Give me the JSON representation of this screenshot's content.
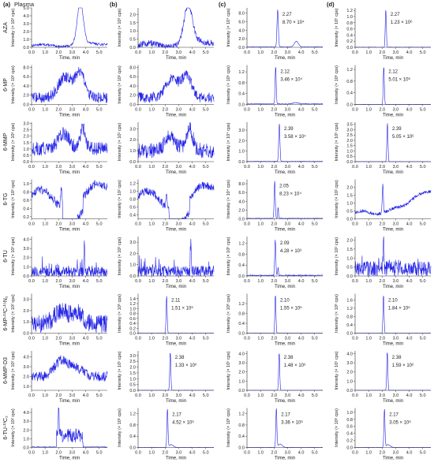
{
  "figure": {
    "trace_color": "#2323e6",
    "axis_color": "#333333",
    "x_tick_labels": [
      "0.0",
      "1.0",
      "2.0",
      "3.0",
      "4.0",
      "5.0"
    ],
    "x_label": "Time, min",
    "columns": [
      {
        "id": "a",
        "label": "(a)",
        "sublabel": "Plasma"
      },
      {
        "id": "b",
        "label": "(b)",
        "sublabel": ""
      },
      {
        "id": "c",
        "label": "(c)",
        "sublabel": ""
      },
      {
        "id": "d",
        "label": "(d)",
        "sublabel": ""
      }
    ],
    "rows": [
      {
        "name": "AZA",
        "name_html": "AZA"
      },
      {
        "name": "6-MP",
        "name_html": "6-MP"
      },
      {
        "name": "6-MMP",
        "name_html": "6-MMP"
      },
      {
        "name": "6-TG",
        "name_html": "6-TG"
      },
      {
        "name": "6-TU",
        "name_html": "6-TU"
      },
      {
        "name": "6-MP-13C-15N2",
        "name_html": "6-MP-¹³C-¹⁵N₂"
      },
      {
        "name": "6-MMP-D3",
        "name_html": "6-MMP-D3"
      },
      {
        "name": "6-TU-13C2",
        "name_html": "6-TU-¹³C₂"
      }
    ]
  },
  "chart_data": [
    {
      "row": 0,
      "col": 0,
      "type": "line",
      "ylabel": "Intensity (× 10³ cps)",
      "yticks": [
        "0.0",
        "1.0",
        "2.0",
        "3.0",
        "4.0",
        "5.0"
      ],
      "ymax": 5.0,
      "x": [
        0,
        5.6
      ],
      "shape": "broad",
      "peaks": [
        {
          "t": 3.6,
          "h": 5.3,
          "w": 0.22
        }
      ],
      "noise": 0.15,
      "base": 0.2,
      "peak_rt": "",
      "peak_intensity": ""
    },
    {
      "row": 0,
      "col": 1,
      "type": "line",
      "ylabel": "Intensity (× 10³ cps)",
      "yticks": [
        "0.0",
        "0.5",
        "1.0",
        "1.5",
        "2.0"
      ],
      "ymax": 2.4,
      "x": [
        0,
        5.6
      ],
      "shape": "broad",
      "peaks": [
        {
          "t": 3.7,
          "h": 2.2,
          "w": 0.3
        }
      ],
      "noise": 0.2,
      "base": 0.1,
      "peak_rt": "",
      "peak_intensity": ""
    },
    {
      "row": 0,
      "col": 2,
      "type": "line",
      "ylabel": "Intensity (× 10⁴ cps)",
      "yticks": [
        "0.0",
        "2.0",
        "4.0",
        "6.0",
        "8.0"
      ],
      "ymax": 9.2,
      "x": [
        0,
        5.6
      ],
      "shape": "sharp",
      "peaks": [
        {
          "t": 2.27,
          "h": 8.7,
          "w": 0.05
        },
        {
          "t": 3.65,
          "h": 1.3,
          "w": 0.15
        }
      ],
      "noise": 0.03,
      "base": 0.1,
      "peak_rt": "2.27",
      "peak_intensity": "8.70 × 10⁴"
    },
    {
      "row": 0,
      "col": 3,
      "type": "line",
      "ylabel": "Intensity (× 10⁶ cps)",
      "yticks": [
        "0.0",
        "0.2",
        "0.4",
        "0.6",
        "0.8",
        "1.0",
        "1.2"
      ],
      "ymax": 1.28,
      "x": [
        0,
        5.6
      ],
      "shape": "sharp",
      "peaks": [
        {
          "t": 2.27,
          "h": 1.23,
          "w": 0.04
        }
      ],
      "noise": 0.01,
      "base": 0.0,
      "peak_rt": "2.27",
      "peak_intensity": "1.23 × 10⁶"
    },
    {
      "row": 1,
      "col": 0,
      "type": "line",
      "ylabel": "Intensity (× 10² cps)",
      "yticks": [
        "0.0",
        "2.0",
        "4.0",
        "6.0",
        "8.0"
      ],
      "ymax": 8.5,
      "x": [
        0,
        5.6
      ],
      "shape": "noisy",
      "peaks": [
        {
          "t": 2.5,
          "h": 4.5,
          "w": 0.5
        },
        {
          "t": 3.6,
          "h": 5,
          "w": 0.35
        }
      ],
      "noise": 1.2,
      "base": 1.5,
      "peak_rt": "",
      "peak_intensity": ""
    },
    {
      "row": 1,
      "col": 1,
      "type": "line",
      "ylabel": "Intensity (× 10² cps)",
      "yticks": [
        "0.0",
        "2.0",
        "4.0",
        "6.0",
        "8.0"
      ],
      "ymax": 8.5,
      "x": [
        0,
        5.6
      ],
      "shape": "noisy",
      "peaks": [
        {
          "t": 2.5,
          "h": 4,
          "w": 0.5
        },
        {
          "t": 3.6,
          "h": 4.5,
          "w": 0.35
        }
      ],
      "noise": 1.2,
      "base": 1.5,
      "peak_rt": "",
      "peak_intensity": ""
    },
    {
      "row": 1,
      "col": 2,
      "type": "line",
      "ylabel": "Intensity (× 10⁵ cps)",
      "yticks": [
        "0.0",
        "0.4",
        "0.8",
        "1.2"
      ],
      "ymax": 1.45,
      "x": [
        0,
        5.6
      ],
      "shape": "sharp",
      "peaks": [
        {
          "t": 2.12,
          "h": 1.38,
          "w": 0.04
        },
        {
          "t": 3.6,
          "h": 0.05,
          "w": 0.2
        }
      ],
      "noise": 0.012,
      "base": 0.02,
      "peak_rt": "2.12",
      "peak_intensity": "3.46 × 10⁴"
    },
    {
      "row": 1,
      "col": 3,
      "type": "line",
      "ylabel": "Intensity (× 10⁶ cps)",
      "yticks": [
        "0.0",
        "0.4",
        "0.8",
        "1.2"
      ],
      "ymax": 1.35,
      "x": [
        0,
        5.6
      ],
      "shape": "sharp",
      "peaks": [
        {
          "t": 2.12,
          "h": 1.3,
          "w": 0.04
        }
      ],
      "noise": 0.008,
      "base": 0.0,
      "peak_rt": "2.12",
      "peak_intensity": "5.01 × 10⁶"
    },
    {
      "row": 2,
      "col": 0,
      "type": "line",
      "ylabel": "Intensity (× 10² cps)",
      "yticks": [
        "0.0",
        "0.5",
        "1.0",
        "1.5",
        "2.0",
        "2.5",
        "3.0"
      ],
      "ymax": 3.1,
      "x": [
        0,
        5.6
      ],
      "shape": "noisy",
      "peaks": [
        {
          "t": 2.4,
          "h": 1.2,
          "w": 0.4
        },
        {
          "t": 3.8,
          "h": 1.6,
          "w": 0.2
        }
      ],
      "noise": 0.55,
      "base": 1.0,
      "peak_rt": "",
      "peak_intensity": ""
    },
    {
      "row": 2,
      "col": 1,
      "type": "line",
      "ylabel": "Intensity (× 10² cps)",
      "yticks": [
        "0.0",
        "1.0",
        "2.0",
        "3.0"
      ],
      "ymax": 3.6,
      "x": [
        0,
        5.6
      ],
      "shape": "noisy",
      "peaks": [
        {
          "t": 2.4,
          "h": 1.3,
          "w": 0.4
        },
        {
          "t": 3.8,
          "h": 2.0,
          "w": 0.25
        }
      ],
      "noise": 0.7,
      "base": 1.0,
      "peak_rt": "",
      "peak_intensity": ""
    },
    {
      "row": 2,
      "col": 2,
      "type": "line",
      "ylabel": "Intensity (× 10⁴ cps)",
      "yticks": [
        "0.0",
        "1.0",
        "2.0",
        "3.0"
      ],
      "ymax": 3.75,
      "x": [
        0,
        5.6
      ],
      "shape": "sharp",
      "peaks": [
        {
          "t": 2.39,
          "h": 3.58,
          "w": 0.045
        }
      ],
      "noise": 0.02,
      "base": 0.02,
      "peak_rt": "2.39",
      "peak_intensity": "3.58 × 10⁴"
    },
    {
      "row": 2,
      "col": 3,
      "type": "line",
      "ylabel": "Intensity (× 10⁵ cps)",
      "yticks": [
        "0.0",
        "0.5",
        "1.0",
        "1.5",
        "2.0",
        "2.5",
        "3.0",
        "3.5"
      ],
      "ymax": 3.7,
      "x": [
        0,
        5.6
      ],
      "shape": "sharp",
      "peaks": [
        {
          "t": 2.39,
          "h": 3.6,
          "w": 0.04
        }
      ],
      "noise": 0.015,
      "base": 0.0,
      "peak_rt": "2.39",
      "peak_intensity": "5.05 × 10⁶"
    },
    {
      "row": 3,
      "col": 0,
      "type": "line",
      "ylabel": "Intensity (× 10² cps)",
      "yticks": [
        "0.2",
        "0.4",
        "0.6",
        "0.8",
        "1.0"
      ],
      "ymax": 1.1,
      "ymin": 0.15,
      "x": [
        0,
        5.6
      ],
      "shape": "wavy",
      "peaks": [
        {
          "t": 2.2,
          "h": 0.5,
          "w": 0.05
        }
      ],
      "noise": 0.1,
      "base": 0.6,
      "peak_rt": "",
      "peak_intensity": ""
    },
    {
      "row": 3,
      "col": 1,
      "type": "line",
      "ylabel": "Intensity (× 10² cps)",
      "yticks": [
        "0.4",
        "0.6",
        "0.8",
        "1.0",
        "1.2"
      ],
      "ymax": 1.3,
      "ymin": 0.3,
      "x": [
        0,
        5.6
      ],
      "shape": "wavy",
      "peaks": [
        {
          "t": 2.1,
          "h": 0.4,
          "w": 0.05
        }
      ],
      "noise": 0.1,
      "base": 0.75,
      "peak_rt": "",
      "peak_intensity": ""
    },
    {
      "row": 3,
      "col": 2,
      "type": "line",
      "ylabel": "Intensity (× 10⁴ cps)",
      "yticks": [
        "0.0",
        "2.0",
        "4.0",
        "6.0",
        "8.0"
      ],
      "ymax": 9.0,
      "x": [
        0,
        5.6
      ],
      "shape": "sharp",
      "peaks": [
        {
          "t": 2.05,
          "h": 8.6,
          "w": 0.04
        },
        {
          "t": 2.3,
          "h": 2.5,
          "w": 0.03
        }
      ],
      "noise": 0.05,
      "base": 0.1,
      "peak_rt": "2.05",
      "peak_intensity": "8.23 × 10⁴"
    },
    {
      "row": 3,
      "col": 3,
      "type": "line",
      "ylabel": "Intensity (× 10² cps)",
      "yticks": [
        "0.0",
        "0.5",
        "1.0",
        "1.5",
        "2.0"
      ],
      "ymax": 2.5,
      "x": [
        0,
        5.6
      ],
      "shape": "rising",
      "peaks": [
        {
          "t": 2.05,
          "h": 1.8,
          "w": 0.04
        }
      ],
      "noise": 0.1,
      "base": 0.4,
      "peak_rt": "",
      "peak_intensity": ""
    },
    {
      "row": 4,
      "col": 0,
      "type": "line",
      "ylabel": "Intensity (× 10² cps)",
      "yticks": [
        "0.0",
        "1.0",
        "2.0",
        "3.0",
        "4.0"
      ],
      "ymax": 4.3,
      "x": [
        0,
        5.6
      ],
      "shape": "spiky",
      "peaks": [
        {
          "t": 3.9,
          "h": 3.5,
          "w": 0.03
        }
      ],
      "noise": 0.6,
      "base": 0.4,
      "peak_rt": "",
      "peak_intensity": ""
    },
    {
      "row": 4,
      "col": 1,
      "type": "line",
      "ylabel": "Intensity (× 10² cps)",
      "yticks": [
        "0.0",
        "1.0",
        "2.0",
        "3.0"
      ],
      "ymax": 3.5,
      "x": [
        0,
        5.6
      ],
      "shape": "spiky",
      "peaks": [
        {
          "t": 3.9,
          "h": 2.9,
          "w": 0.03
        }
      ],
      "noise": 0.5,
      "base": 0.4,
      "peak_rt": "",
      "peak_intensity": ""
    },
    {
      "row": 4,
      "col": 2,
      "type": "line",
      "ylabel": "Intensity (× 10⁵ cps)",
      "yticks": [
        "0.0",
        "0.4",
        "0.8",
        "1.2"
      ],
      "ymax": 1.45,
      "x": [
        0,
        5.6
      ],
      "shape": "sharp",
      "peaks": [
        {
          "t": 2.09,
          "h": 1.3,
          "w": 0.04
        },
        {
          "t": 2.3,
          "h": 0.3,
          "w": 0.03
        }
      ],
      "noise": 0.02,
      "base": 0.02,
      "peak_rt": "2.09",
      "peak_intensity": "4.28 × 10³"
    },
    {
      "row": 4,
      "col": 3,
      "type": "line",
      "ylabel": "Intensity (× 10² cps)",
      "yticks": [
        "0.0",
        "0.5",
        "1.0",
        "1.5",
        "2.0"
      ],
      "ymax": 2.2,
      "x": [
        0,
        5.6
      ],
      "shape": "spiky",
      "peaks": [
        {
          "t": 2.1,
          "h": 1.5,
          "w": 0.03
        }
      ],
      "noise": 0.45,
      "base": 0.4,
      "peak_rt": "",
      "peak_intensity": ""
    },
    {
      "row": 5,
      "col": 0,
      "type": "line",
      "ylabel": "Intensity (× 10² cps)",
      "yticks": [
        "0.0",
        "1.0",
        "2.0",
        "3.0"
      ],
      "ymax": 3.5,
      "x": [
        0,
        5.6
      ],
      "shape": "noisy",
      "peaks": [
        {
          "t": 2.2,
          "h": 1.2,
          "w": 0.5
        },
        {
          "t": 3.4,
          "h": 1.0,
          "w": 0.4
        }
      ],
      "noise": 0.8,
      "base": 0.8,
      "peak_rt": "",
      "peak_intensity": ""
    },
    {
      "row": 5,
      "col": 1,
      "type": "line",
      "ylabel": "Intensity (× 10⁶ cps)",
      "yticks": [
        "0.0",
        "0.2",
        "0.4",
        "0.6",
        "0.8",
        "1.0",
        "1.2",
        "1.4"
      ],
      "ymax": 1.6,
      "x": [
        0,
        5.6
      ],
      "shape": "sharp",
      "peaks": [
        {
          "t": 2.11,
          "h": 1.5,
          "w": 0.04
        }
      ],
      "noise": 0.006,
      "base": 0.0,
      "peak_rt": "2.11",
      "peak_intensity": "1.51 × 10⁶"
    },
    {
      "row": 5,
      "col": 2,
      "type": "line",
      "ylabel": "Intensity (× 10⁶ cps)",
      "yticks": [
        "0.0",
        "0.4",
        "0.8",
        "1.2"
      ],
      "ymax": 1.6,
      "x": [
        0,
        5.6
      ],
      "shape": "sharp",
      "peaks": [
        {
          "t": 2.1,
          "h": 1.55,
          "w": 0.04
        }
      ],
      "noise": 0.006,
      "base": 0.0,
      "peak_rt": "2.10",
      "peak_intensity": "1.55 × 10⁶"
    },
    {
      "row": 5,
      "col": 3,
      "type": "line",
      "ylabel": "Intensity (× 10⁶ cps)",
      "yticks": [
        "0.0",
        "0.4",
        "0.8",
        "1.2",
        "1.6"
      ],
      "ymax": 1.9,
      "x": [
        0,
        5.6
      ],
      "shape": "sharp",
      "peaks": [
        {
          "t": 2.1,
          "h": 1.84,
          "w": 0.04
        }
      ],
      "noise": 0.006,
      "base": 0.0,
      "peak_rt": "2.10",
      "peak_intensity": "1.84 × 10⁶"
    },
    {
      "row": 6,
      "col": 0,
      "type": "line",
      "ylabel": "Intensity (× 10² cps)",
      "yticks": [
        "1.0",
        "2.0",
        "3.0",
        "4.0"
      ],
      "ymax": 4.6,
      "ymin": 0.6,
      "x": [
        0,
        5.6
      ],
      "shape": "noisy",
      "peaks": [
        {
          "t": 2.2,
          "h": 1.6,
          "w": 0.5
        },
        {
          "t": 3.3,
          "h": 0.8,
          "w": 0.5
        }
      ],
      "noise": 0.5,
      "base": 2.0,
      "peak_rt": "",
      "peak_intensity": ""
    },
    {
      "row": 6,
      "col": 1,
      "type": "line",
      "ylabel": "Intensity (× 10⁵ cps)",
      "yticks": [
        "0.0",
        "0.5",
        "1.0",
        "1.5",
        "2.0",
        "2.5",
        "3.0"
      ],
      "ymax": 3.4,
      "x": [
        0,
        5.6
      ],
      "shape": "sharp",
      "peaks": [
        {
          "t": 2.38,
          "h": 3.3,
          "w": 0.04
        }
      ],
      "noise": 0.01,
      "base": 0.0,
      "peak_rt": "2.38",
      "peak_intensity": "1.33 × 10⁶"
    },
    {
      "row": 6,
      "col": 2,
      "type": "line",
      "ylabel": "Intensity (× 10⁵ cps)",
      "yticks": [
        "0.0",
        "1.0",
        "2.0",
        "3.0",
        "4.0"
      ],
      "ymax": 4.3,
      "x": [
        0,
        5.6
      ],
      "shape": "sharp",
      "peaks": [
        {
          "t": 2.38,
          "h": 4.1,
          "w": 0.04
        }
      ],
      "noise": 0.01,
      "base": 0.0,
      "peak_rt": "2.38",
      "peak_intensity": "1.48 × 10⁶"
    },
    {
      "row": 6,
      "col": 3,
      "type": "line",
      "ylabel": "Intensity (× 10⁵ cps)",
      "yticks": [
        "0.0",
        "1.0",
        "2.0",
        "3.0",
        "4.0"
      ],
      "ymax": 4.3,
      "x": [
        0,
        5.6
      ],
      "shape": "sharp",
      "peaks": [
        {
          "t": 2.38,
          "h": 4.2,
          "w": 0.04
        }
      ],
      "noise": 0.01,
      "base": 0.0,
      "peak_rt": "2.38",
      "peak_intensity": "1.59 × 10⁶"
    },
    {
      "row": 7,
      "col": 0,
      "type": "line",
      "ylabel": "Intensity (× 10² cps)",
      "yticks": [
        "0.0",
        "1.0",
        "2.0",
        "3.0",
        "4.0"
      ],
      "ymax": 4.5,
      "x": [
        0,
        5.6
      ],
      "shape": "block",
      "peaks": [
        {
          "t": 2.0,
          "h": 3.8,
          "w": 0.03
        }
      ],
      "noise": 0.8,
      "base": 0.05,
      "peak_rt": "",
      "peak_intensity": ""
    },
    {
      "row": 7,
      "col": 1,
      "type": "line",
      "ylabel": "Intensity (× 10⁶ cps)",
      "yticks": [
        "0.0",
        "0.4",
        "0.8",
        "1.2"
      ],
      "ymax": 1.4,
      "x": [
        0,
        5.6
      ],
      "shape": "sharp",
      "peaks": [
        {
          "t": 2.17,
          "h": 1.35,
          "w": 0.04
        },
        {
          "t": 2.45,
          "h": 0.1,
          "w": 0.15
        }
      ],
      "noise": 0.006,
      "base": 0.0,
      "peak_rt": "2.17",
      "peak_intensity": "4.52 × 10⁶"
    },
    {
      "row": 7,
      "col": 2,
      "type": "line",
      "ylabel": "Intensity (× 10⁶ cps)",
      "yticks": [
        "0.0",
        "0.4",
        "0.8",
        "1.2"
      ],
      "ymax": 1.4,
      "x": [
        0,
        5.6
      ],
      "shape": "sharp",
      "peaks": [
        {
          "t": 2.17,
          "h": 1.38,
          "w": 0.04
        },
        {
          "t": 2.45,
          "h": 0.12,
          "w": 0.15
        }
      ],
      "noise": 0.006,
      "base": 0.0,
      "peak_rt": "2.17",
      "peak_intensity": "3.36 × 10⁶"
    },
    {
      "row": 7,
      "col": 3,
      "type": "line",
      "ylabel": "Intensity (× 10⁶ cps)",
      "yticks": [
        "0.0",
        "0.2",
        "0.4",
        "0.6",
        "0.8",
        "1.0"
      ],
      "ymax": 1.12,
      "x": [
        0,
        5.6
      ],
      "shape": "sharp",
      "peaks": [
        {
          "t": 2.17,
          "h": 1.08,
          "w": 0.04
        },
        {
          "t": 2.45,
          "h": 0.08,
          "w": 0.15
        }
      ],
      "noise": 0.005,
      "base": 0.0,
      "peak_rt": "2.17",
      "peak_intensity": "3.05 × 10⁶"
    }
  ]
}
